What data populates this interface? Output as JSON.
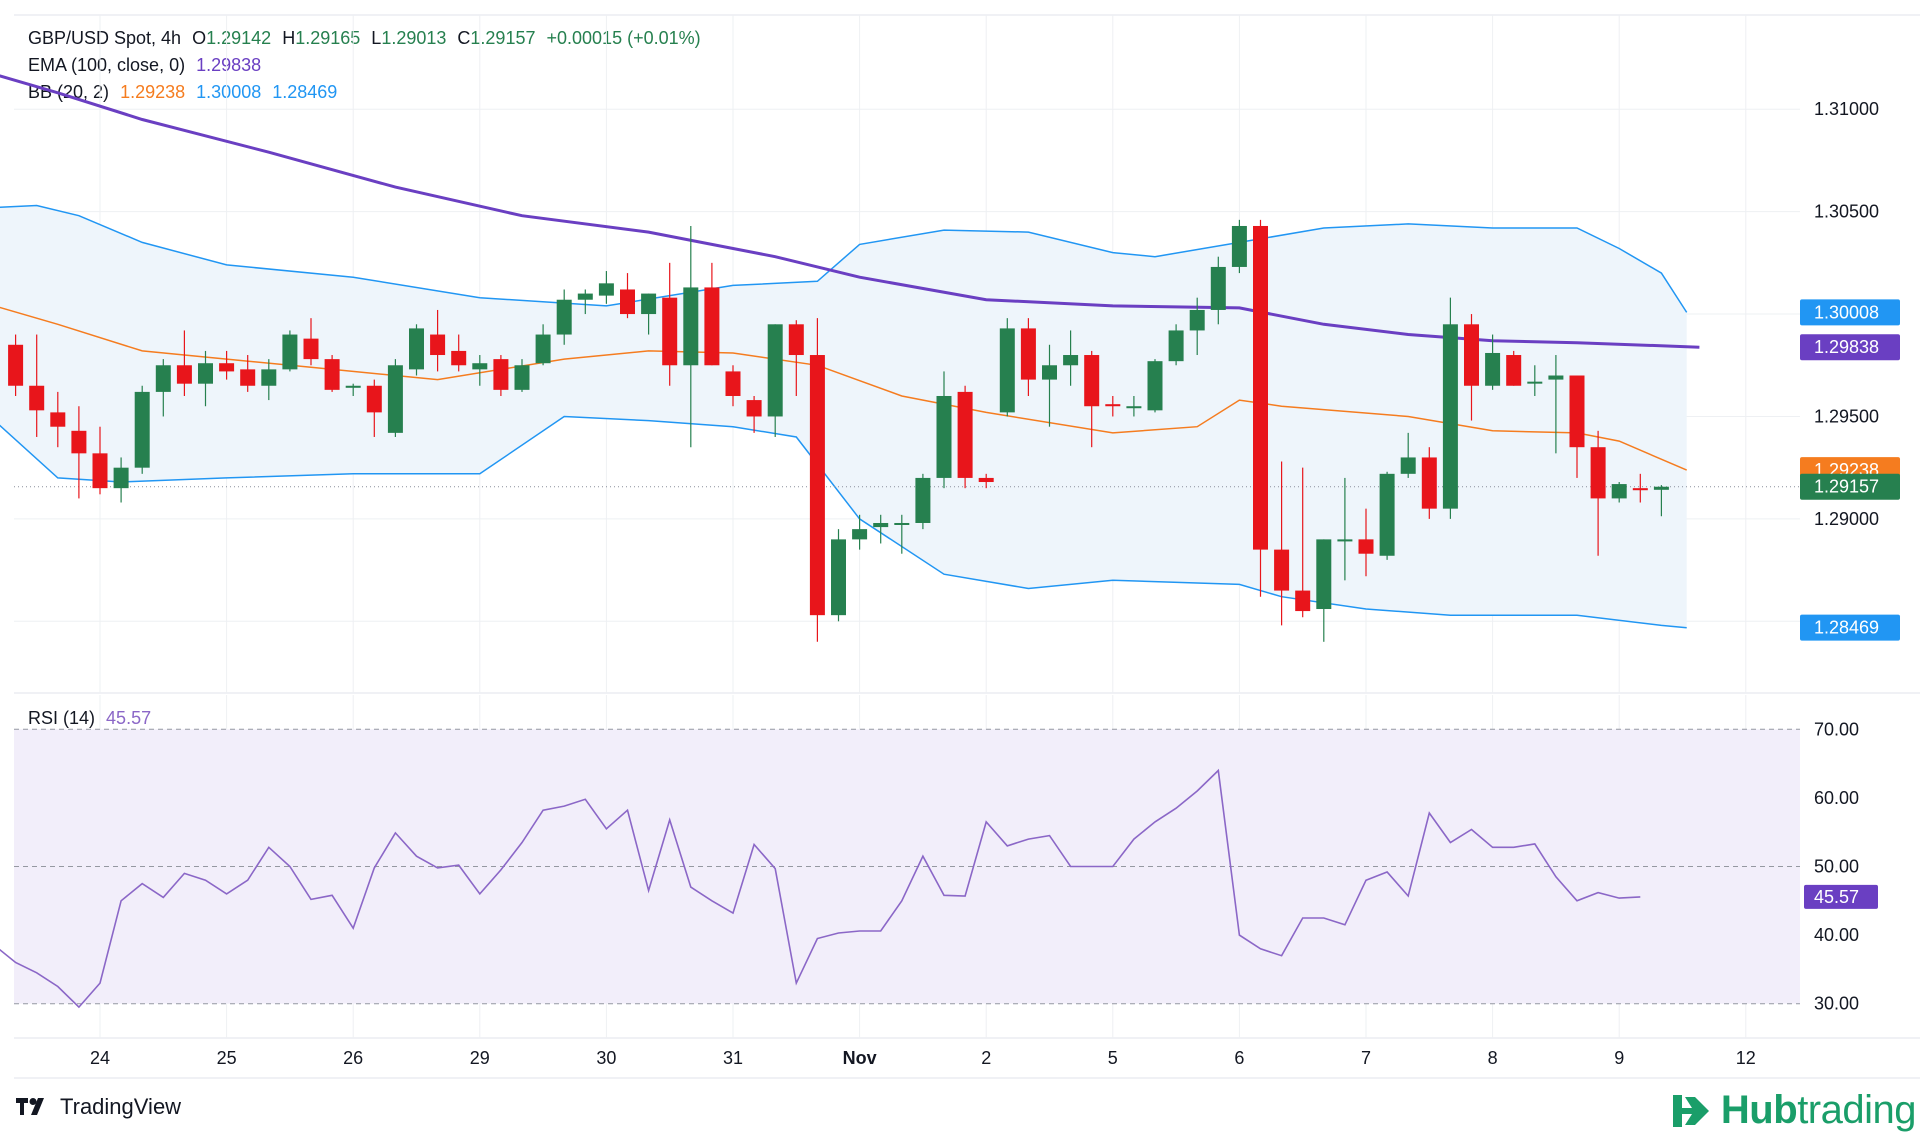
{
  "header": {
    "symbol": "GBP/USD Spot, 4h",
    "o_label": "O",
    "o": "1.29142",
    "h_label": "H",
    "h": "1.29165",
    "l_label": "L",
    "l": "1.29013",
    "c_label": "C",
    "c": "1.29157",
    "change": "+0.00015 (+0.01%)"
  },
  "ema_legend": {
    "label": "EMA (100, close, 0)",
    "value": "1.29838"
  },
  "bb_legend": {
    "label": "BB (20, 2)",
    "basis": "1.29238",
    "upper": "1.30008",
    "lower": "1.28469"
  },
  "rsi_legend": {
    "label": "RSI (14)",
    "value": "45.57"
  },
  "price_badges": {
    "bb_upper": "1.30008",
    "ema": "1.29838",
    "bb_basis": "1.29238",
    "last": "1.29157",
    "bb_lower": "1.28469",
    "rsi": "45.57"
  },
  "colors": {
    "up": "#26804f",
    "down": "#e8151b",
    "ema": "#6a3fc2",
    "bb_basis": "#f57c1f",
    "bb_band": "#2196f3",
    "bb_fill": "#eef5fb",
    "rsi_line": "#8b67c7",
    "rsi_fill": "#f2eefa",
    "grid": "#eef0f3",
    "axis_text": "#131722"
  },
  "footer": {
    "brand": "TradingView",
    "partner_a": "Hub",
    "partner_b": "trading"
  },
  "chart_data": {
    "type": "candlestick",
    "title": "GBP/USD Spot, 4h",
    "price_axis": {
      "min": 1.2815,
      "max": 1.3146,
      "ticks": [
        "1.31000",
        "1.30500",
        "1.29500",
        "1.29000"
      ]
    },
    "rsi_axis": {
      "min": 25,
      "max": 75,
      "ticks": [
        "70.00",
        "60.00",
        "50.00",
        "40.00",
        "30.00"
      ],
      "bands": [
        70,
        50,
        30
      ]
    },
    "x_labels": [
      {
        "i": 4,
        "label": "24"
      },
      {
        "i": 10,
        "label": "25"
      },
      {
        "i": 16,
        "label": "26"
      },
      {
        "i": 22,
        "label": "29"
      },
      {
        "i": 28,
        "label": "30"
      },
      {
        "i": 34,
        "label": "31"
      },
      {
        "i": 40,
        "label": "Nov"
      },
      {
        "i": 46,
        "label": "2"
      },
      {
        "i": 52,
        "label": "5"
      },
      {
        "i": 58,
        "label": "6"
      },
      {
        "i": 64,
        "label": "7"
      },
      {
        "i": 70,
        "label": "8"
      },
      {
        "i": 76,
        "label": "9"
      },
      {
        "i": 82,
        "label": "12"
      }
    ],
    "candles": [
      [
        1.2985,
        1.299,
        1.296,
        1.2965
      ],
      [
        1.2965,
        1.299,
        1.294,
        1.2953
      ],
      [
        1.2952,
        1.2962,
        1.2935,
        1.2945
      ],
      [
        1.2943,
        1.2955,
        1.291,
        1.2932
      ],
      [
        1.2932,
        1.2945,
        1.2912,
        1.2915
      ],
      [
        1.2915,
        1.293,
        1.2908,
        1.2925
      ],
      [
        1.2925,
        1.2965,
        1.2922,
        1.2962
      ],
      [
        1.2962,
        1.2978,
        1.295,
        1.2975
      ],
      [
        1.2975,
        1.2992,
        1.296,
        1.2966
      ],
      [
        1.2966,
        1.2982,
        1.2955,
        1.2976
      ],
      [
        1.2976,
        1.2982,
        1.2968,
        1.2972
      ],
      [
        1.2973,
        1.298,
        1.2962,
        1.2965
      ],
      [
        1.2965,
        1.2978,
        1.2958,
        1.2973
      ],
      [
        1.2973,
        1.2992,
        1.2972,
        1.299
      ],
      [
        1.2988,
        1.2998,
        1.2975,
        1.2978
      ],
      [
        1.2978,
        1.298,
        1.2962,
        1.2963
      ],
      [
        1.2964,
        1.2966,
        1.296,
        1.2965
      ],
      [
        1.2965,
        1.2968,
        1.294,
        1.2952
      ],
      [
        1.2942,
        1.2978,
        1.294,
        1.2975
      ],
      [
        1.2973,
        1.2995,
        1.297,
        1.2993
      ],
      [
        1.299,
        1.3002,
        1.2972,
        1.298
      ],
      [
        1.2982,
        1.299,
        1.2972,
        1.2975
      ],
      [
        1.2973,
        1.298,
        1.2965,
        1.2976
      ],
      [
        1.2978,
        1.298,
        1.296,
        1.2963
      ],
      [
        1.2963,
        1.2978,
        1.2962,
        1.2975
      ],
      [
        1.2976,
        1.2995,
        1.2975,
        1.299
      ],
      [
        1.299,
        1.3012,
        1.2985,
        1.3007
      ],
      [
        1.3007,
        1.3012,
        1.3,
        1.301
      ],
      [
        1.3009,
        1.3021,
        1.3005,
        1.3015
      ],
      [
        1.3012,
        1.302,
        1.2998,
        1.3
      ],
      [
        1.3,
        1.301,
        1.299,
        1.301
      ],
      [
        1.3008,
        1.3025,
        1.2965,
        1.2975
      ],
      [
        1.2975,
        1.3043,
        1.2935,
        1.3013
      ],
      [
        1.3013,
        1.3025,
        1.2975,
        1.2975
      ],
      [
        1.2972,
        1.2975,
        1.2955,
        1.296
      ],
      [
        1.2958,
        1.296,
        1.2942,
        1.295
      ],
      [
        1.295,
        1.2995,
        1.294,
        1.2995
      ],
      [
        1.2995,
        1.2997,
        1.296,
        1.298
      ],
      [
        1.298,
        1.2998,
        1.284,
        1.2853
      ],
      [
        1.2853,
        1.2895,
        1.285,
        1.289
      ],
      [
        1.289,
        1.2902,
        1.2885,
        1.2895
      ],
      [
        1.2896,
        1.2902,
        1.2888,
        1.2898
      ],
      [
        1.2898,
        1.2902,
        1.2883,
        1.2898
      ],
      [
        1.2898,
        1.2922,
        1.2895,
        1.292
      ],
      [
        1.292,
        1.2972,
        1.2915,
        1.296
      ],
      [
        1.2962,
        1.2965,
        1.2915,
        1.292
      ],
      [
        1.292,
        1.2922,
        1.2915,
        1.2918
      ],
      [
        1.2952,
        1.2998,
        1.295,
        1.2993
      ],
      [
        1.2993,
        1.2998,
        1.296,
        1.2968
      ],
      [
        1.2968,
        1.2985,
        1.2945,
        1.2975
      ],
      [
        1.2975,
        1.2992,
        1.2965,
        1.298
      ],
      [
        1.298,
        1.2982,
        1.2935,
        1.2955
      ],
      [
        1.2956,
        1.296,
        1.295,
        1.2955
      ],
      [
        1.2955,
        1.296,
        1.295,
        1.2955
      ],
      [
        1.2953,
        1.2978,
        1.2952,
        1.2977
      ],
      [
        1.2977,
        1.2995,
        1.2975,
        1.2992
      ],
      [
        1.2992,
        1.3008,
        1.298,
        1.3002
      ],
      [
        1.3002,
        1.3028,
        1.2995,
        1.3023
      ],
      [
        1.3023,
        1.3046,
        1.302,
        1.3043
      ],
      [
        1.3043,
        1.3046,
        1.2862,
        1.2885
      ],
      [
        1.2885,
        1.2928,
        1.2848,
        1.2865
      ],
      [
        1.2865,
        1.2925,
        1.2852,
        1.2855
      ],
      [
        1.2856,
        1.289,
        1.284,
        1.289
      ],
      [
        1.2889,
        1.292,
        1.287,
        1.289
      ],
      [
        1.289,
        1.2905,
        1.2872,
        1.2883
      ],
      [
        1.2882,
        1.2923,
        1.288,
        1.2922
      ],
      [
        1.2922,
        1.2942,
        1.292,
        1.293
      ],
      [
        1.293,
        1.2935,
        1.29,
        1.2905
      ],
      [
        1.2905,
        1.3008,
        1.29,
        1.2995
      ],
      [
        1.2995,
        1.3,
        1.2948,
        1.2965
      ],
      [
        1.2965,
        1.299,
        1.2963,
        1.2981
      ],
      [
        1.298,
        1.2982,
        1.2965,
        1.2965
      ],
      [
        1.2967,
        1.2975,
        1.296,
        1.2967
      ],
      [
        1.2968,
        1.298,
        1.2932,
        1.297
      ],
      [
        1.297,
        1.297,
        1.292,
        1.2935
      ],
      [
        1.2935,
        1.2943,
        1.2882,
        1.291
      ],
      [
        1.291,
        1.2918,
        1.2908,
        1.2917
      ],
      [
        1.2915,
        1.2922,
        1.2908,
        1.2914
      ],
      [
        1.29142,
        1.29165,
        1.29013,
        1.29157
      ]
    ],
    "ema": [
      [
        -1,
        1.3117
      ],
      [
        2,
        1.3108
      ],
      [
        6,
        1.3095
      ],
      [
        12,
        1.3079
      ],
      [
        18,
        1.3062
      ],
      [
        24,
        1.3048
      ],
      [
        30,
        1.304
      ],
      [
        36,
        1.3028
      ],
      [
        40,
        1.3018
      ],
      [
        46,
        1.3007
      ],
      [
        52,
        1.3004
      ],
      [
        58,
        1.3003
      ],
      [
        62,
        1.2995
      ],
      [
        66,
        1.299
      ],
      [
        70,
        1.2987
      ],
      [
        74,
        1.2986
      ],
      [
        79.8,
        1.29838
      ]
    ],
    "bb_upper": [
      [
        -1,
        1.3052
      ],
      [
        1,
        1.3053
      ],
      [
        3,
        1.3048
      ],
      [
        6,
        1.3035
      ],
      [
        10,
        1.3024
      ],
      [
        16,
        1.3018
      ],
      [
        22,
        1.3008
      ],
      [
        28,
        1.3004
      ],
      [
        34,
        1.3014
      ],
      [
        38,
        1.3016
      ],
      [
        40,
        1.3034
      ],
      [
        44,
        1.3041
      ],
      [
        48,
        1.304
      ],
      [
        52,
        1.303
      ],
      [
        54,
        1.3028
      ],
      [
        58,
        1.3035
      ],
      [
        62,
        1.3042
      ],
      [
        66,
        1.3044
      ],
      [
        70,
        1.3042
      ],
      [
        74,
        1.3042
      ],
      [
        76,
        1.3032
      ],
      [
        78,
        1.302
      ],
      [
        79.2,
        1.30008
      ]
    ],
    "bb_basis": [
      [
        -1,
        1.3004
      ],
      [
        2,
        1.2995
      ],
      [
        6,
        1.2982
      ],
      [
        10,
        1.2978
      ],
      [
        14,
        1.2974
      ],
      [
        20,
        1.2968
      ],
      [
        26,
        1.2978
      ],
      [
        30,
        1.2982
      ],
      [
        34,
        1.2981
      ],
      [
        38,
        1.2975
      ],
      [
        42,
        1.296
      ],
      [
        46,
        1.2952
      ],
      [
        52,
        1.2942
      ],
      [
        56,
        1.2945
      ],
      [
        58,
        1.2958
      ],
      [
        60,
        1.2955
      ],
      [
        66,
        1.295
      ],
      [
        70,
        1.2943
      ],
      [
        74,
        1.2942
      ],
      [
        76,
        1.2938
      ],
      [
        79.2,
        1.29238
      ]
    ],
    "bb_lower": [
      [
        -1,
        1.2948
      ],
      [
        2,
        1.292
      ],
      [
        5,
        1.2918
      ],
      [
        10,
        1.292
      ],
      [
        16,
        1.2922
      ],
      [
        22,
        1.2922
      ],
      [
        26,
        1.295
      ],
      [
        30,
        1.2948
      ],
      [
        34,
        1.2945
      ],
      [
        37,
        1.294
      ],
      [
        40,
        1.29
      ],
      [
        44,
        1.2873
      ],
      [
        48,
        1.2866
      ],
      [
        52,
        1.287
      ],
      [
        58,
        1.2868
      ],
      [
        60,
        1.2862
      ],
      [
        64,
        1.2856
      ],
      [
        68,
        1.2853
      ],
      [
        74,
        1.2853
      ],
      [
        78,
        1.2848
      ],
      [
        79.2,
        1.28469
      ]
    ],
    "rsi": [
      [
        -1,
        38.5
      ],
      [
        0,
        36.0
      ],
      [
        1,
        34.5
      ],
      [
        2,
        32.5
      ],
      [
        3,
        29.5
      ],
      [
        4,
        33.0
      ],
      [
        5,
        45.0
      ],
      [
        6,
        47.5
      ],
      [
        7,
        45.5
      ],
      [
        8,
        49.0
      ],
      [
        9,
        48.0
      ],
      [
        10,
        46.0
      ],
      [
        11,
        48.0
      ],
      [
        12,
        52.8
      ],
      [
        13,
        50.0
      ],
      [
        14,
        45.2
      ],
      [
        15,
        45.8
      ],
      [
        16,
        41.0
      ],
      [
        17,
        49.8
      ],
      [
        18,
        54.9
      ],
      [
        19,
        51.5
      ],
      [
        20,
        49.8
      ],
      [
        21,
        50.2
      ],
      [
        22,
        46.0
      ],
      [
        23,
        49.5
      ],
      [
        24,
        53.5
      ],
      [
        25,
        58.2
      ],
      [
        26,
        58.8
      ],
      [
        27,
        59.8
      ],
      [
        28,
        55.5
      ],
      [
        29,
        58.2
      ],
      [
        30,
        46.5
      ],
      [
        31,
        56.8
      ],
      [
        32,
        47.0
      ],
      [
        33,
        45.0
      ],
      [
        34,
        43.2
      ],
      [
        35,
        53.2
      ],
      [
        36,
        49.7
      ],
      [
        37,
        33.0
      ],
      [
        38,
        39.5
      ],
      [
        39,
        40.3
      ],
      [
        40,
        40.6
      ],
      [
        41,
        40.6
      ],
      [
        42,
        45.0
      ],
      [
        43,
        51.5
      ],
      [
        44,
        45.8
      ],
      [
        45,
        45.7
      ],
      [
        46,
        56.5
      ],
      [
        47,
        53.0
      ],
      [
        48,
        54.0
      ],
      [
        49,
        54.5
      ],
      [
        50,
        50.0
      ],
      [
        51,
        50.0
      ],
      [
        52,
        50.0
      ],
      [
        53,
        54.0
      ],
      [
        54,
        56.5
      ],
      [
        55,
        58.5
      ],
      [
        56,
        61.0
      ],
      [
        57,
        64.0
      ],
      [
        58,
        40.0
      ],
      [
        59,
        38.0
      ],
      [
        60,
        37.0
      ],
      [
        61,
        42.5
      ],
      [
        62,
        42.5
      ],
      [
        63,
        41.5
      ],
      [
        64,
        48.0
      ],
      [
        65,
        49.2
      ],
      [
        66,
        45.7
      ],
      [
        67,
        57.8
      ],
      [
        68,
        53.5
      ],
      [
        69,
        55.4
      ],
      [
        70,
        52.8
      ],
      [
        71,
        52.8
      ],
      [
        72,
        53.3
      ],
      [
        73,
        48.5
      ],
      [
        74,
        45.0
      ],
      [
        75,
        46.2
      ],
      [
        76,
        45.4
      ],
      [
        77,
        45.57
      ]
    ]
  }
}
